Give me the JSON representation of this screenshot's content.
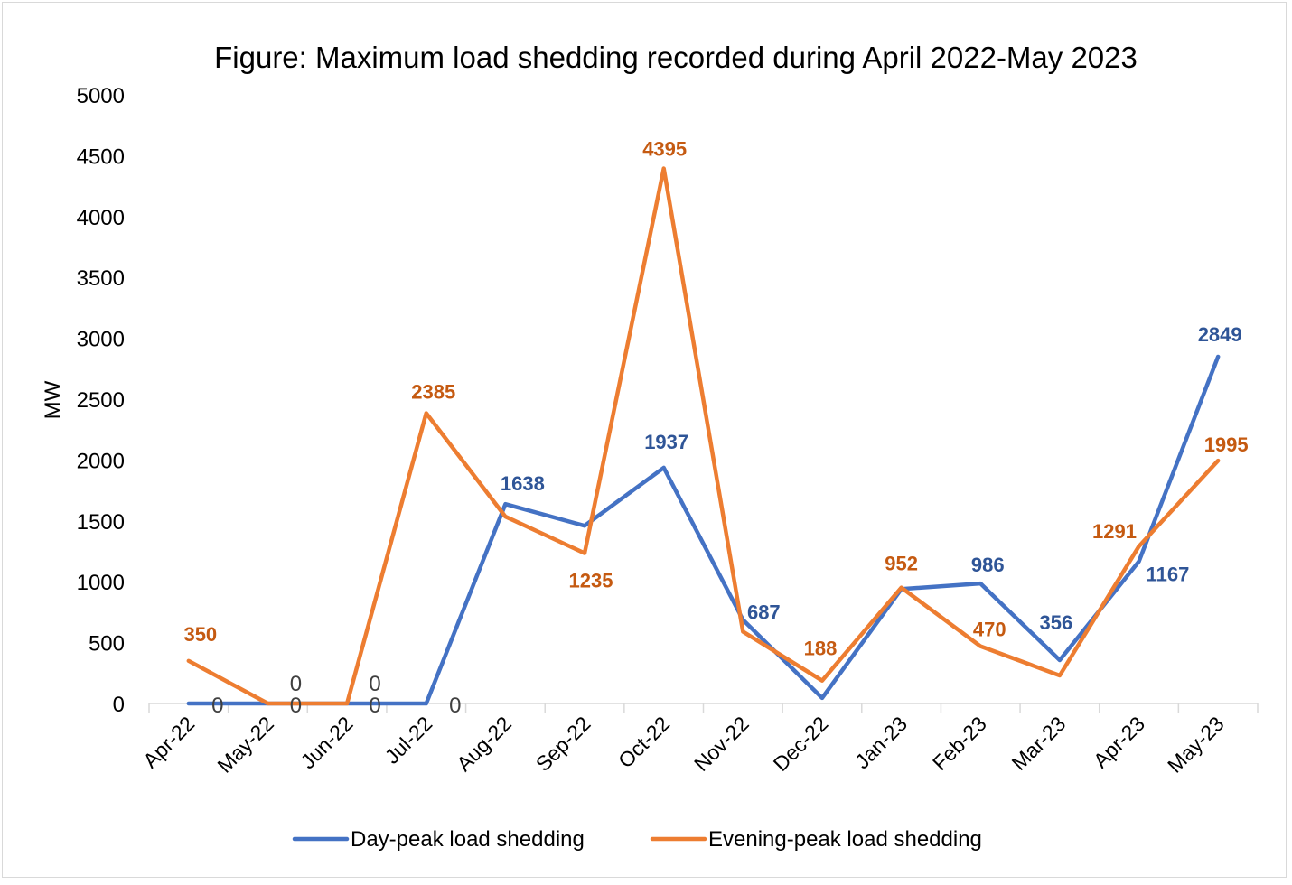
{
  "chart_data": {
    "type": "line",
    "title": "Figure: Maximum load shedding recorded during April 2022-May 2023",
    "xlabel": "",
    "ylabel": "MW",
    "ylim": [
      0,
      5000
    ],
    "yticks": [
      "0",
      "500",
      "1000",
      "1500",
      "2000",
      "2500",
      "3000",
      "3500",
      "4000",
      "4500",
      "5000"
    ],
    "grid": false,
    "legend_position": "bottom",
    "categories": [
      "Apr-22",
      "May-22",
      "Jun-22",
      "Jul-22",
      "Aug-22",
      "Sep-22",
      "Oct-22",
      "Nov-22",
      "Dec-22",
      "Jan-23",
      "Feb-23",
      "Mar-23",
      "Apr-23",
      "May-23"
    ],
    "series": [
      {
        "name": "Day-peak load shedding",
        "color": "#4472C4",
        "label_color": "#2F5597",
        "values": [
          0,
          0,
          0,
          0,
          1638,
          1460,
          1937,
          687,
          45,
          940,
          986,
          356,
          1167,
          2849
        ],
        "labels": [
          "0",
          "0",
          "0",
          "0",
          "1638",
          null,
          "1937",
          "687",
          null,
          null,
          "986",
          "356",
          "1167",
          "2849"
        ]
      },
      {
        "name": "Evening-peak load shedding",
        "color": "#ED7D31",
        "label_color": "#C55A11",
        "values": [
          350,
          0,
          0,
          2385,
          1535,
          1235,
          4395,
          590,
          188,
          952,
          470,
          230,
          1291,
          1995
        ],
        "labels": [
          "350",
          "0",
          "0",
          "2385",
          null,
          "1235",
          "4395",
          null,
          "188",
          "952",
          "470",
          null,
          "1291",
          "1995"
        ]
      }
    ],
    "zero_label_color": "#404040"
  }
}
